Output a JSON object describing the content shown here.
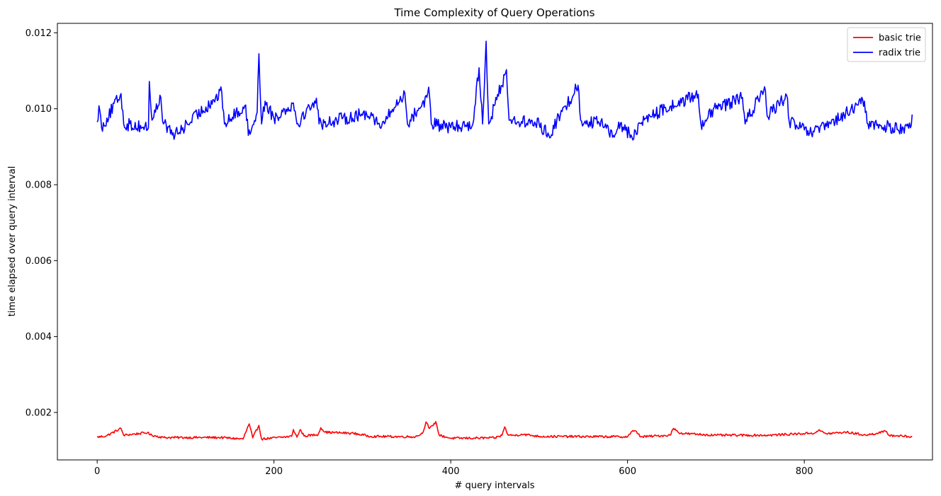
{
  "chart_data": {
    "type": "line",
    "title": "Time Complexity of Query Operations",
    "xlabel": "# query intervals",
    "ylabel": "time elapsed over query interval",
    "xlim": [
      -45,
      945
    ],
    "ylim": [
      0.00075,
      0.01225
    ],
    "xticks": [
      0,
      200,
      400,
      600,
      800
    ],
    "yticks": [
      0.002,
      0.004,
      0.006,
      0.008,
      0.01,
      0.012
    ],
    "xtick_labels": [
      "0",
      "200",
      "400",
      "600",
      "800"
    ],
    "ytick_labels": [
      "0.002",
      "0.004",
      "0.006",
      "0.008",
      "0.010",
      "0.012"
    ],
    "grid": false,
    "legend": "top-right",
    "x_range": [
      0,
      922
    ],
    "series": [
      {
        "name": "basic trie",
        "color": "#ff0000",
        "baseline": 0.00135,
        "noise": 3e-05,
        "keypoints": [
          [
            0,
            0.00135
          ],
          [
            10,
            0.00138
          ],
          [
            27,
            0.00158
          ],
          [
            30,
            0.0014
          ],
          [
            57,
            0.00147
          ],
          [
            60,
            0.00141
          ],
          [
            75,
            0.00134
          ],
          [
            140,
            0.00134
          ],
          [
            165,
            0.0013
          ],
          [
            172,
            0.0017
          ],
          [
            176,
            0.00133
          ],
          [
            183,
            0.00166
          ],
          [
            186,
            0.0013
          ],
          [
            220,
            0.00137
          ],
          [
            222,
            0.00155
          ],
          [
            226,
            0.00135
          ],
          [
            230,
            0.00155
          ],
          [
            234,
            0.00138
          ],
          [
            250,
            0.00142
          ],
          [
            253,
            0.0016
          ],
          [
            258,
            0.00148
          ],
          [
            290,
            0.00145
          ],
          [
            310,
            0.00137
          ],
          [
            360,
            0.00136
          ],
          [
            368,
            0.00145
          ],
          [
            372,
            0.00175
          ],
          [
            376,
            0.00158
          ],
          [
            380,
            0.00165
          ],
          [
            383,
            0.00176
          ],
          [
            387,
            0.0014
          ],
          [
            400,
            0.00132
          ],
          [
            450,
            0.00133
          ],
          [
            458,
            0.0014
          ],
          [
            461,
            0.00162
          ],
          [
            465,
            0.0014
          ],
          [
            475,
            0.0014
          ],
          [
            480,
            0.00143
          ],
          [
            500,
            0.00137
          ],
          [
            600,
            0.00136
          ],
          [
            605,
            0.0015
          ],
          [
            610,
            0.0015
          ],
          [
            615,
            0.00136
          ],
          [
            648,
            0.0014
          ],
          [
            652,
            0.00158
          ],
          [
            660,
            0.00145
          ],
          [
            700,
            0.0014
          ],
          [
            760,
            0.0014
          ],
          [
            812,
            0.00146
          ],
          [
            816,
            0.00153
          ],
          [
            825,
            0.00144
          ],
          [
            848,
            0.00148
          ],
          [
            870,
            0.0014
          ],
          [
            892,
            0.0015
          ],
          [
            896,
            0.0014
          ],
          [
            922,
            0.00136
          ]
        ]
      },
      {
        "name": "radix trie",
        "color": "#0000ff",
        "baseline": 0.00968,
        "noise": 0.00017,
        "keypoints": [
          [
            0,
            0.00965
          ],
          [
            2,
            0.01008
          ],
          [
            5,
            0.0095
          ],
          [
            27,
            0.0104
          ],
          [
            30,
            0.0096
          ],
          [
            58,
            0.0095
          ],
          [
            59,
            0.01072
          ],
          [
            62,
            0.0097
          ],
          [
            72,
            0.0103
          ],
          [
            75,
            0.0096
          ],
          [
            88,
            0.0093
          ],
          [
            141,
            0.01043
          ],
          [
            144,
            0.0096
          ],
          [
            168,
            0.0101
          ],
          [
            171,
            0.0093
          ],
          [
            181,
            0.0099
          ],
          [
            183,
            0.01145
          ],
          [
            186,
            0.0096
          ],
          [
            190,
            0.0102
          ],
          [
            200,
            0.00975
          ],
          [
            222,
            0.01015
          ],
          [
            226,
            0.0096
          ],
          [
            248,
            0.01028
          ],
          [
            251,
            0.0096
          ],
          [
            310,
            0.0099
          ],
          [
            320,
            0.0095
          ],
          [
            348,
            0.01042
          ],
          [
            351,
            0.0096
          ],
          [
            373,
            0.0103
          ],
          [
            375,
            0.01057
          ],
          [
            378,
            0.0096
          ],
          [
            400,
            0.0095
          ],
          [
            425,
            0.0096
          ],
          [
            432,
            0.01108
          ],
          [
            436,
            0.0096
          ],
          [
            440,
            0.01178
          ],
          [
            443,
            0.0096
          ],
          [
            463,
            0.01103
          ],
          [
            466,
            0.0097
          ],
          [
            500,
            0.0096
          ],
          [
            511,
            0.0093
          ],
          [
            544,
            0.01062
          ],
          [
            547,
            0.0097
          ],
          [
            575,
            0.0096
          ],
          [
            583,
            0.00925
          ],
          [
            590,
            0.00965
          ],
          [
            605,
            0.00925
          ],
          [
            620,
            0.00975
          ],
          [
            680,
            0.01038
          ],
          [
            683,
            0.0096
          ],
          [
            700,
            0.01
          ],
          [
            730,
            0.0103
          ],
          [
            733,
            0.0096
          ],
          [
            755,
            0.01058
          ],
          [
            758,
            0.0098
          ],
          [
            780,
            0.01035
          ],
          [
            783,
            0.00965
          ],
          [
            808,
            0.00935
          ],
          [
            830,
            0.0096
          ],
          [
            868,
            0.0102
          ],
          [
            872,
            0.0096
          ],
          [
            900,
            0.0095
          ],
          [
            920,
            0.0095
          ],
          [
            922,
            0.00985
          ]
        ]
      }
    ]
  }
}
